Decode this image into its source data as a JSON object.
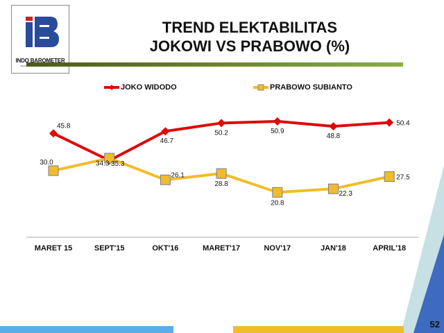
{
  "logo": {
    "name": "INDO BAROMETER",
    "tagline": "Barometer Perilaku Masyarakat Indonesia"
  },
  "title": {
    "line1": "TREND ELEKTABILITAS",
    "line2": "JOKOWI VS PRABOWO (%)"
  },
  "page_number": "52",
  "colors": {
    "jokowi": "#dd0a0a",
    "prabowo": "#f0bd2a",
    "rule_start": "#4a5a1a",
    "rule_end": "#8aae3a"
  },
  "chart_data": {
    "type": "line",
    "categories": [
      "MARET 15",
      "SEPT'15",
      "OKT'16",
      "MARET'17",
      "NOV'17",
      "JAN'18",
      "APRIL'18"
    ],
    "series": [
      {
        "name": "JOKO WIDODO",
        "marker": "diamond",
        "color": "#dd0a0a",
        "values": [
          45.8,
          34.3,
          46.7,
          50.2,
          50.9,
          48.8,
          50.4
        ]
      },
      {
        "name": "PRABOWO SUBIANTO",
        "marker": "square",
        "color": "#f0bd2a",
        "values": [
          30.0,
          35.3,
          26.1,
          28.8,
          20.8,
          22.3,
          27.5
        ]
      }
    ],
    "data_labels": true,
    "grid": false,
    "y_axis_visible": false,
    "legend": "top",
    "ylim": [
      0,
      55
    ]
  }
}
